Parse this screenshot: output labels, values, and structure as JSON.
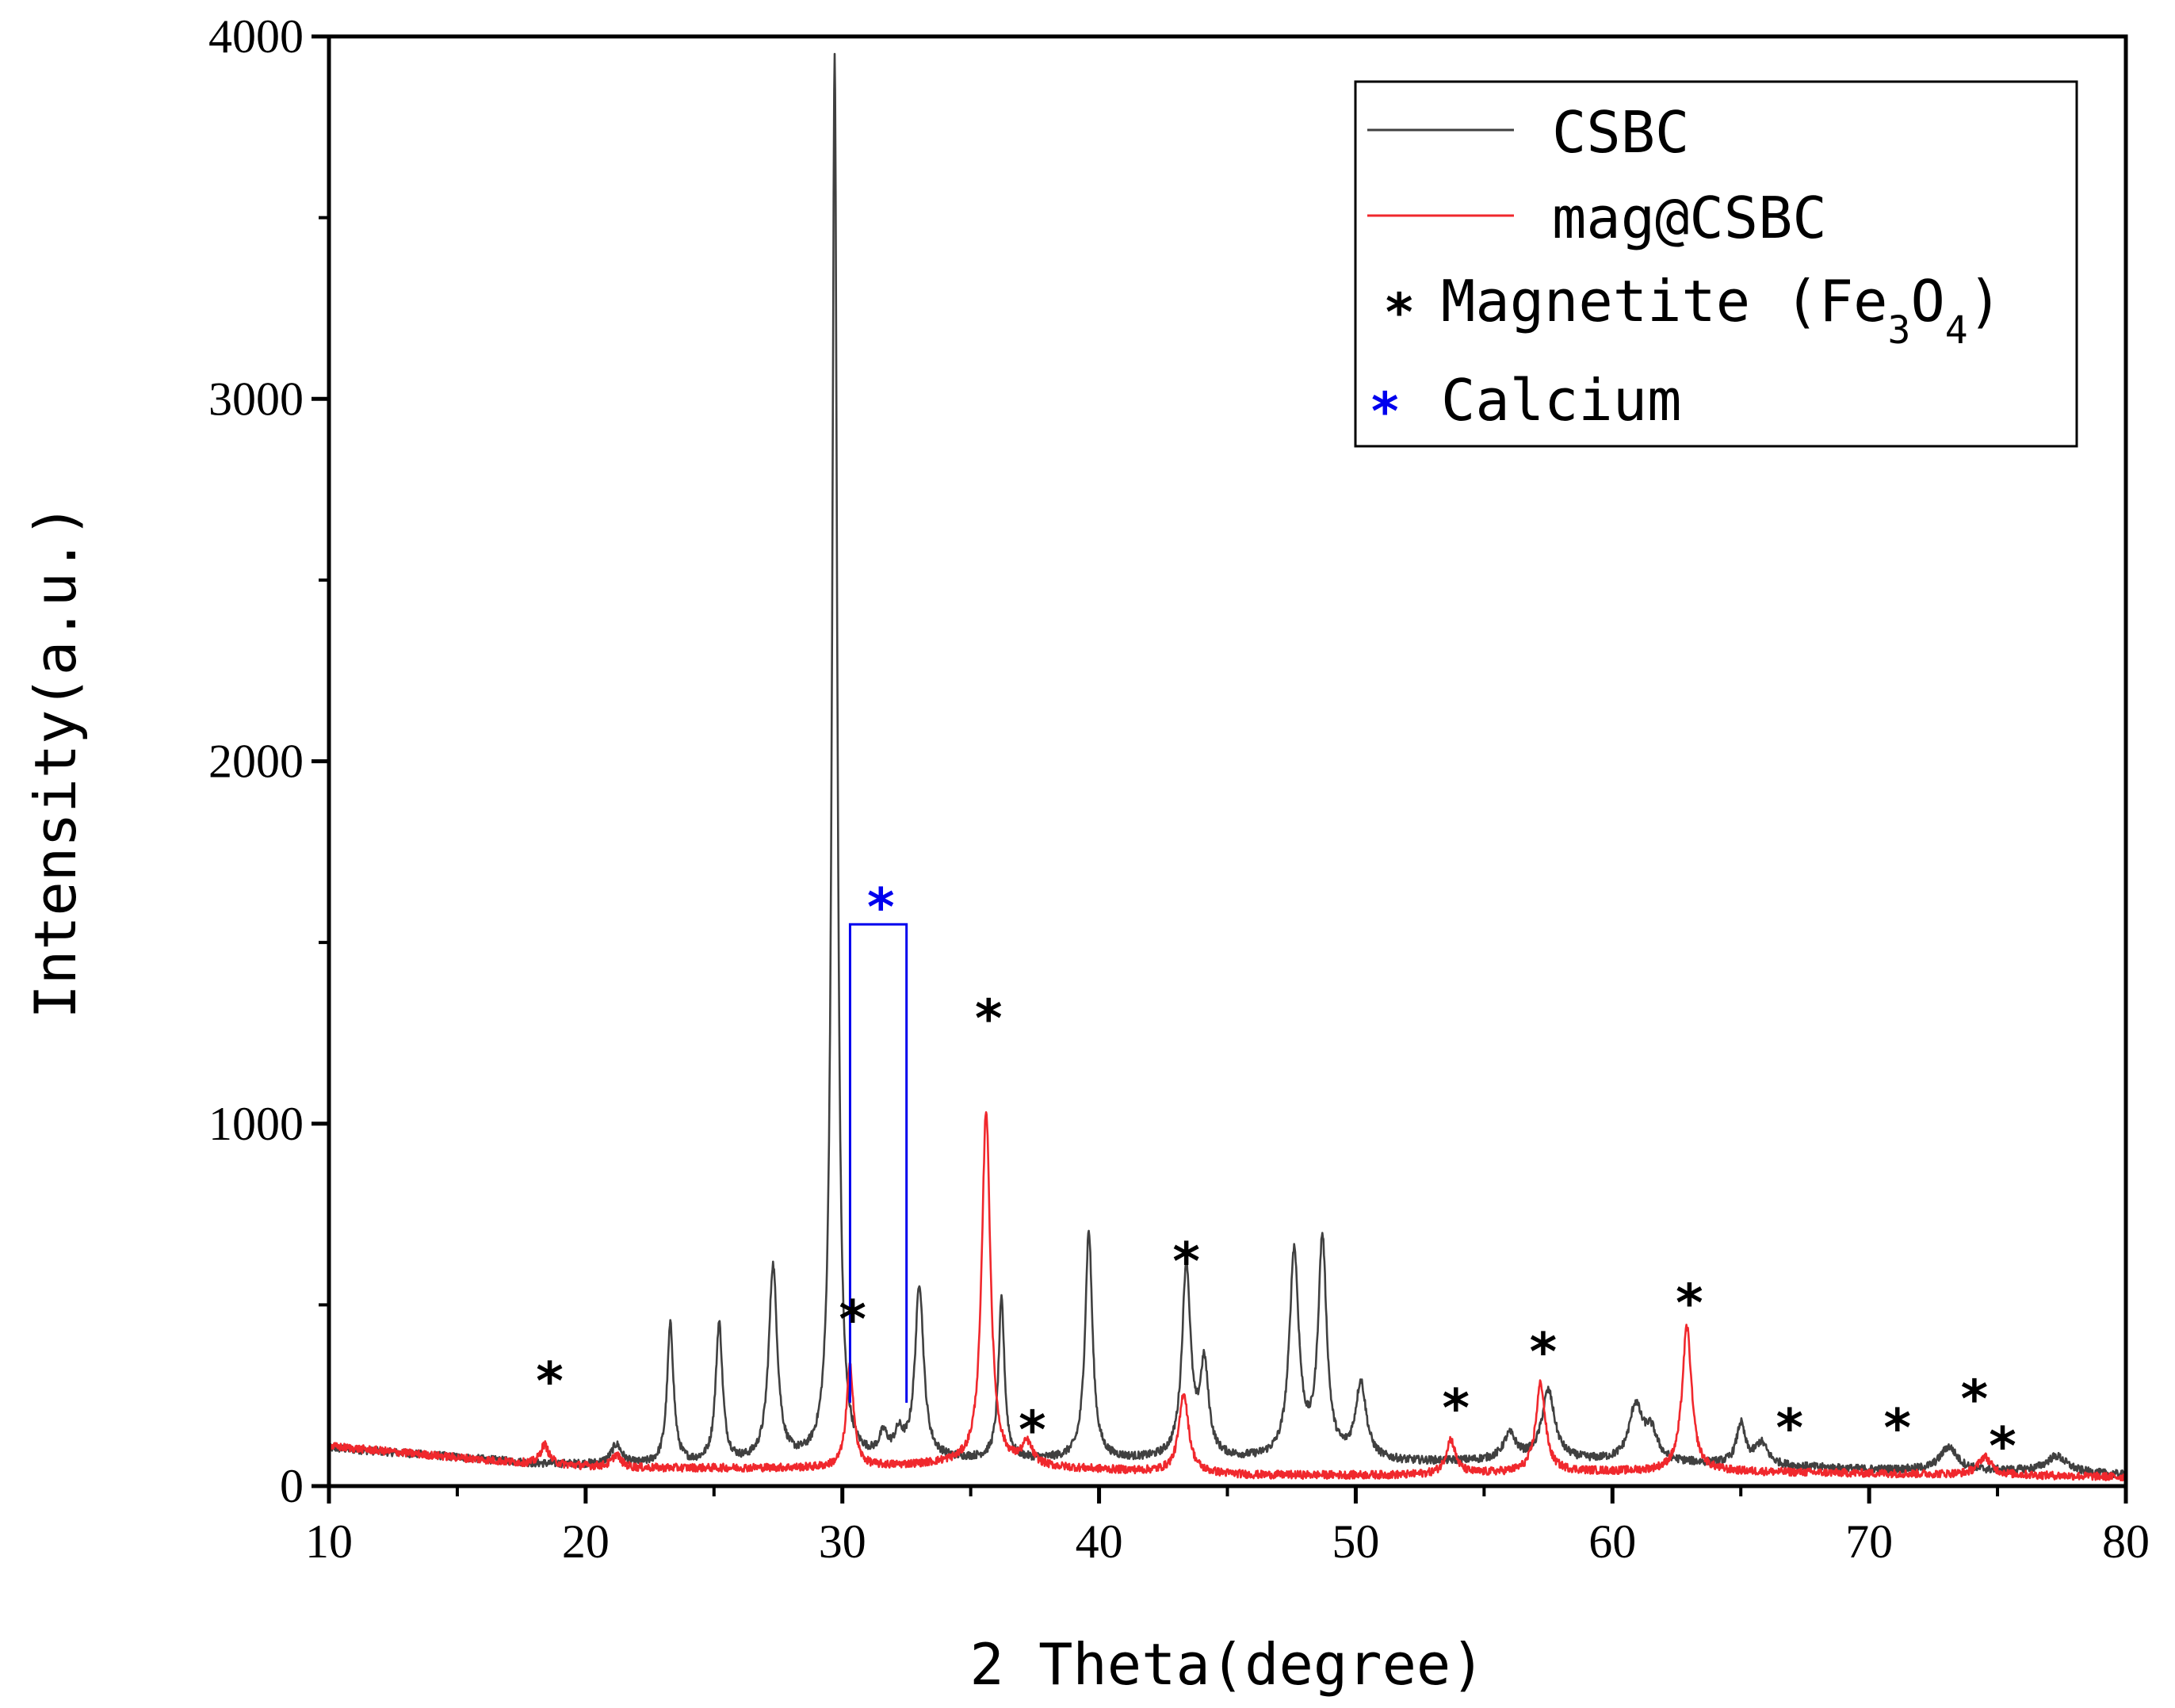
{
  "chart_data": {
    "type": "line",
    "title": "",
    "xlabel": "2 Theta(degree)",
    "ylabel": "Intensity(a.u.)",
    "xlim": [
      10,
      80
    ],
    "ylim": [
      0,
      4000
    ],
    "x_ticks": [
      10,
      20,
      30,
      40,
      50,
      60,
      70,
      80
    ],
    "y_ticks": [
      0,
      1000,
      2000,
      3000,
      4000
    ],
    "x_tick_labels": [
      "10",
      "20",
      "30",
      "40",
      "50",
      "60",
      "70",
      "80"
    ],
    "y_tick_labels": [
      "0",
      "1000",
      "2000",
      "3000",
      "4000"
    ],
    "legend_position": "top-right",
    "colors": {
      "csbc": "#404040",
      "mag": "#f0282d",
      "magnetite_marker": "#000000",
      "calcium_marker": "#0000ee"
    },
    "series": [
      {
        "name": "CSBC",
        "background": [
          [
            10,
            105
          ],
          [
            14,
            85
          ],
          [
            18,
            62
          ],
          [
            22,
            55
          ],
          [
            28,
            60
          ],
          [
            34,
            70
          ],
          [
            40,
            70
          ],
          [
            46,
            70
          ],
          [
            52,
            65
          ],
          [
            58,
            70
          ],
          [
            64,
            60
          ],
          [
            70,
            45
          ],
          [
            76,
            40
          ],
          [
            80,
            30
          ]
        ],
        "peaks": [
          [
            21.2,
            55,
            0.25
          ],
          [
            23.3,
            385,
            0.15
          ],
          [
            25.2,
            385,
            0.16
          ],
          [
            27.3,
            540,
            0.2
          ],
          [
            29.7,
            3880,
            0.12
          ],
          [
            31.6,
            60,
            0.2
          ],
          [
            32.2,
            60,
            0.2
          ],
          [
            33.0,
            480,
            0.2
          ],
          [
            36.2,
            440,
            0.14
          ],
          [
            39.6,
            630,
            0.17
          ],
          [
            43.4,
            530,
            0.2
          ],
          [
            44.1,
            250,
            0.2
          ],
          [
            47.6,
            570,
            0.22
          ],
          [
            48.7,
            600,
            0.2
          ],
          [
            50.2,
            210,
            0.25
          ],
          [
            56.0,
            70,
            0.3
          ],
          [
            57.5,
            190,
            0.3
          ],
          [
            60.9,
            150,
            0.3
          ],
          [
            61.5,
            80,
            0.3
          ],
          [
            65.0,
            110,
            0.2
          ],
          [
            65.8,
            60,
            0.3
          ],
          [
            73.1,
            65,
            0.4
          ],
          [
            77.3,
            45,
            0.5
          ]
        ]
      },
      {
        "name": "mag@CSBC",
        "background": [
          [
            10,
            110
          ],
          [
            14,
            85
          ],
          [
            18,
            60
          ],
          [
            22,
            50
          ],
          [
            30,
            50
          ],
          [
            34,
            60
          ],
          [
            40,
            45
          ],
          [
            46,
            30
          ],
          [
            52,
            30
          ],
          [
            58,
            40
          ],
          [
            64,
            40
          ],
          [
            70,
            35
          ],
          [
            76,
            30
          ],
          [
            80,
            25
          ]
        ],
        "peaks": [
          [
            18.4,
            55,
            0.2
          ],
          [
            21.2,
            35,
            0.2
          ],
          [
            30.3,
            280,
            0.17
          ],
          [
            35.6,
            980,
            0.2
          ],
          [
            37.2,
            60,
            0.25
          ],
          [
            43.3,
            220,
            0.22
          ],
          [
            53.7,
            95,
            0.22
          ],
          [
            57.2,
            245,
            0.22
          ],
          [
            62.9,
            400,
            0.22
          ],
          [
            74.5,
            50,
            0.3
          ]
        ]
      }
    ],
    "magnetite_markers": [
      [
        18.6,
        310
      ],
      [
        30.4,
        480
      ],
      [
        35.7,
        1310
      ],
      [
        37.4,
        175
      ],
      [
        43.4,
        640
      ],
      [
        53.9,
        235
      ],
      [
        57.3,
        390
      ],
      [
        63.0,
        525
      ],
      [
        66.9,
        180
      ],
      [
        71.1,
        180
      ],
      [
        74.1,
        260
      ],
      [
        75.2,
        130
      ]
    ],
    "calcium_marker": [
      31.5,
      1630
    ],
    "calcium_bracket": {
      "x_left": 30.3,
      "x_right": 32.5,
      "y_top": 1550,
      "y_bottom": 230
    },
    "legend": {
      "entries": [
        {
          "label": "CSBC",
          "kind": "line",
          "color_key": "csbc"
        },
        {
          "label": "mag@CSBC",
          "kind": "line",
          "color_key": "mag"
        },
        {
          "label": "Magnetite (Fe",
          "sub1": "3",
          "mid": "O",
          "sub2": "4",
          "tail": ")",
          "kind": "marker",
          "color_key": "magnetite_marker",
          "symbol": "*"
        },
        {
          "label": "Calcium",
          "kind": "marker",
          "color_key": "calcium_marker",
          "symbol": "*"
        }
      ]
    }
  }
}
